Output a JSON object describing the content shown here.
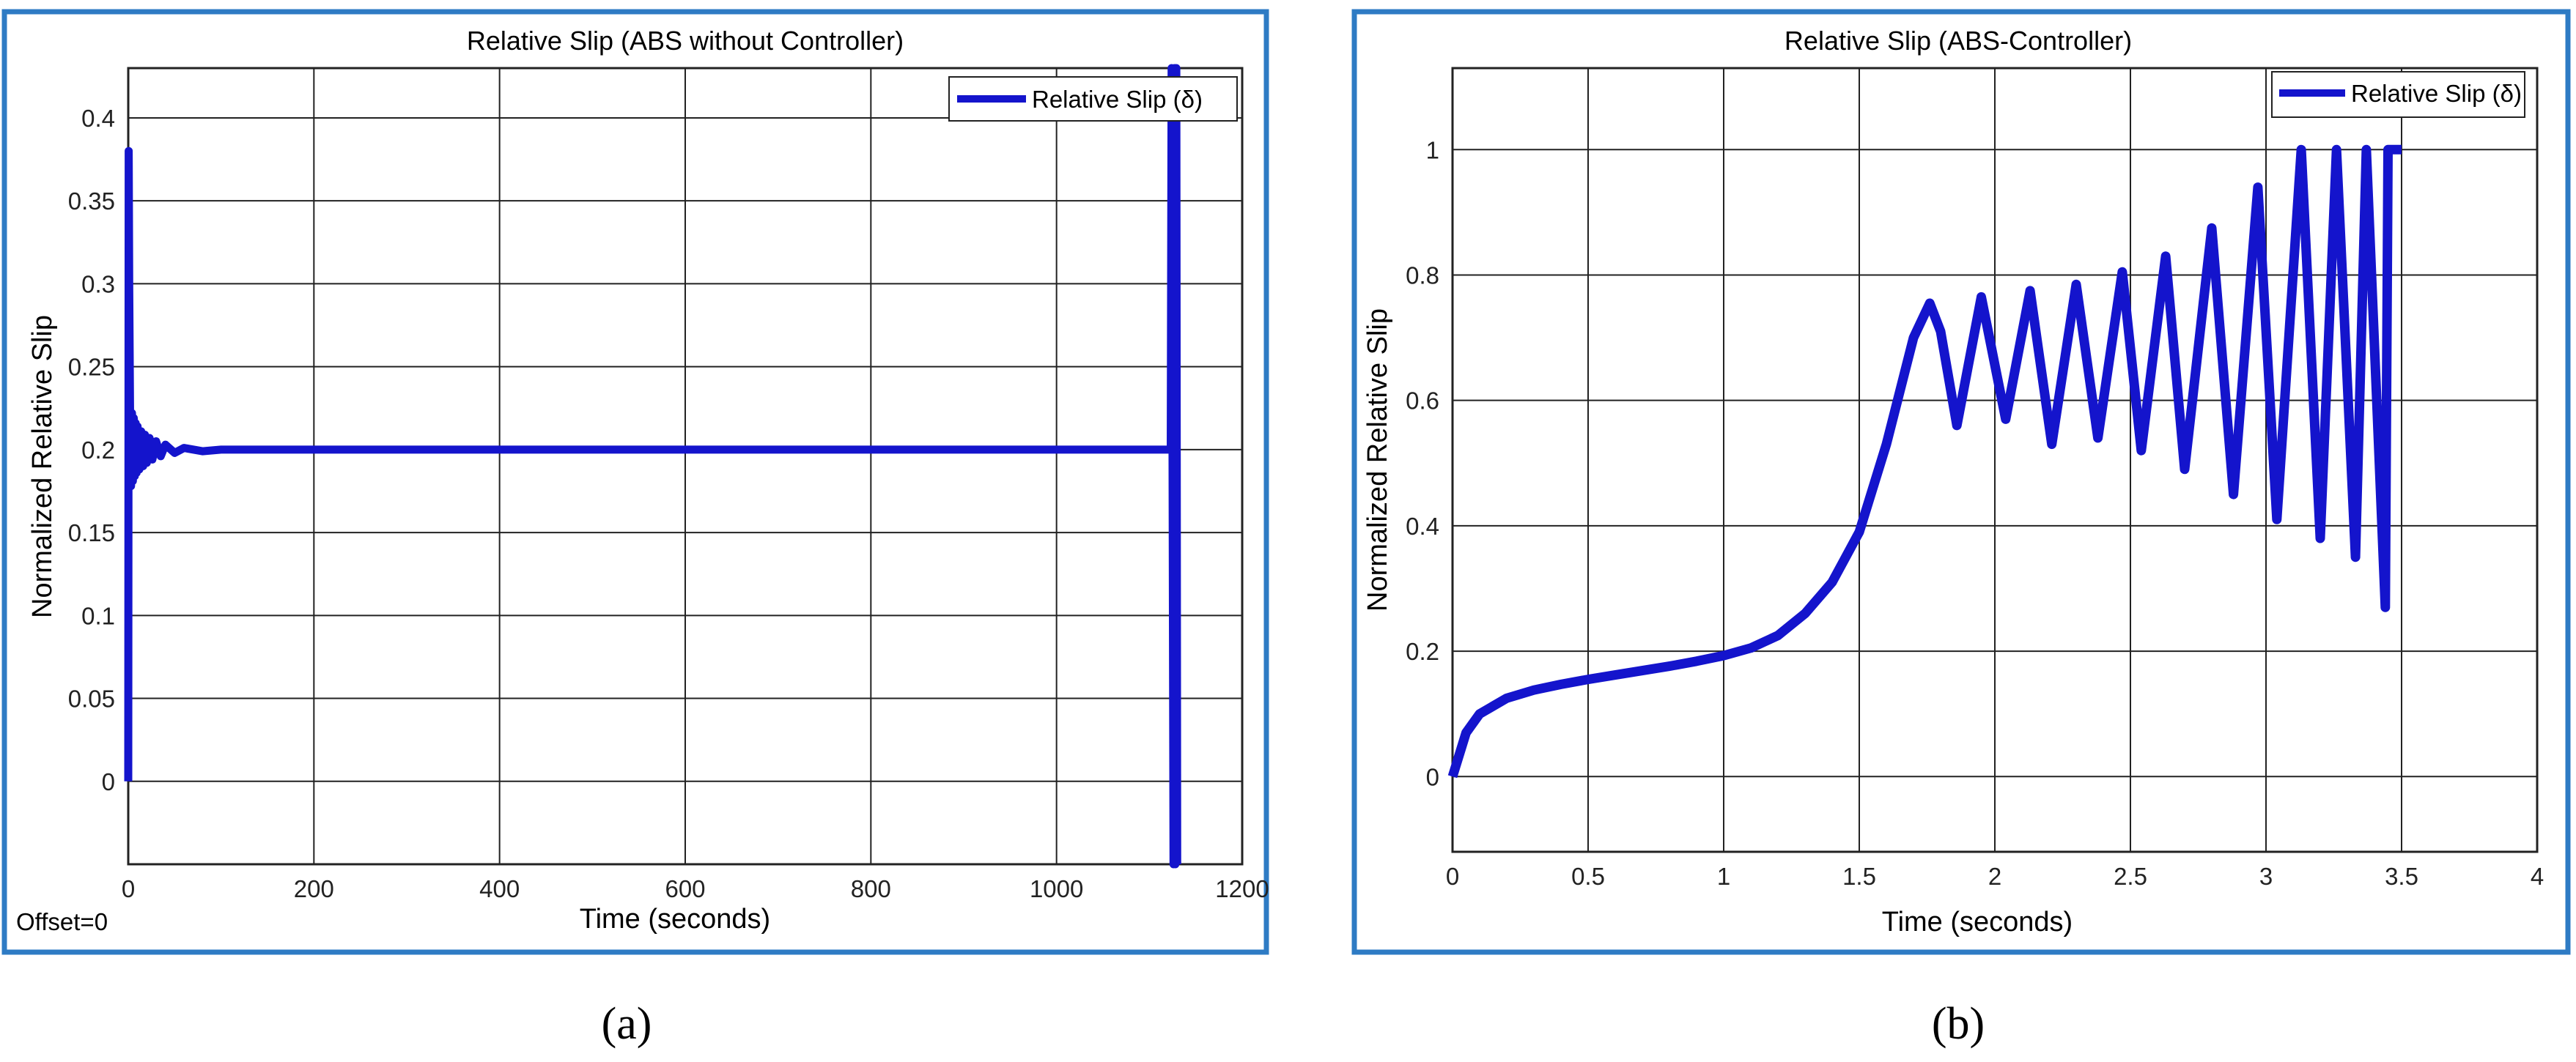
{
  "colors": {
    "frame": "#2e7bc4",
    "line": "#1414cc",
    "grid": "#222222",
    "axis_text": "#222222",
    "title_text": "#222222"
  },
  "panels": [
    {
      "offset_text": "Offset=0",
      "caption": "(a)"
    },
    {
      "caption": "(b)"
    }
  ],
  "chart_data": [
    {
      "type": "line",
      "title": "Relative Slip (ABS without Controller)",
      "xlabel": "Time (seconds)",
      "ylabel": "Normalized Relative Slip",
      "xlim": [
        0,
        1200
      ],
      "ylim": [
        -0.05,
        0.43
      ],
      "xticks": [
        0,
        200,
        400,
        600,
        800,
        1000,
        1200
      ],
      "xtick_labels": [
        "0",
        "200",
        "400",
        "600",
        "800",
        "1000",
        "1200"
      ],
      "yticks": [
        0,
        0.05,
        0.1,
        0.15,
        0.2,
        0.25,
        0.3,
        0.35,
        0.4
      ],
      "ytick_labels": [
        "0",
        "0.05",
        "0.1",
        "0.15",
        "0.2",
        "0.25",
        "0.3",
        "0.35",
        "0.4"
      ],
      "grid": true,
      "legend_position": "top-right",
      "series": [
        {
          "name": "Relative Slip (δ)",
          "x": [
            0,
            0.5,
            1,
            2,
            3,
            4,
            5,
            6,
            7,
            8,
            9,
            10,
            12,
            14,
            16,
            18,
            20,
            23,
            26,
            30,
            35,
            40,
            50,
            60,
            80,
            100,
            200,
            400,
            600,
            800,
            1000,
            1120,
            1123,
            1124,
            1126,
            1127,
            1128,
            1129,
            1130
          ],
          "y": [
            0,
            0.38,
            0.3,
            0.22,
            0.178,
            0.222,
            0.181,
            0.219,
            0.184,
            0.216,
            0.186,
            0.214,
            0.188,
            0.211,
            0.19,
            0.209,
            0.192,
            0.207,
            0.194,
            0.205,
            0.196,
            0.203,
            0.198,
            0.201,
            0.199,
            0.2,
            0.2,
            0.2,
            0.2,
            0.2,
            0.2,
            0.2,
            0.2,
            0.43,
            -0.05,
            0.43,
            -0.05,
            0.43,
            -0.05
          ]
        }
      ]
    },
    {
      "type": "line",
      "title": "Relative Slip (ABS-Controller)",
      "xlabel": "Time (seconds)",
      "ylabel": "Normalized Relative Slip",
      "xlim": [
        0,
        4
      ],
      "ylim": [
        -0.12,
        1.13
      ],
      "xticks": [
        0,
        0.5,
        1,
        1.5,
        2,
        2.5,
        3,
        3.5,
        4
      ],
      "xtick_labels": [
        "0",
        "0.5",
        "1",
        "1.5",
        "2",
        "2.5",
        "3",
        "3.5",
        "4"
      ],
      "yticks": [
        0,
        0.2,
        0.4,
        0.6,
        0.8,
        1
      ],
      "ytick_labels": [
        "0",
        "0.2",
        "0.4",
        "0.6",
        "0.8",
        "1"
      ],
      "grid": true,
      "legend_position": "top-right",
      "series": [
        {
          "name": "Relative Slip (δ)",
          "x": [
            0,
            0.05,
            0.1,
            0.2,
            0.3,
            0.4,
            0.5,
            0.6,
            0.7,
            0.8,
            0.9,
            1.0,
            1.1,
            1.2,
            1.3,
            1.4,
            1.5,
            1.6,
            1.7,
            1.76,
            1.8,
            1.86,
            1.95,
            2.04,
            2.13,
            2.21,
            2.3,
            2.38,
            2.47,
            2.54,
            2.63,
            2.7,
            2.8,
            2.88,
            2.97,
            3.04,
            3.13,
            3.2,
            3.26,
            3.33,
            3.37,
            3.44,
            3.45,
            3.47,
            3.5
          ],
          "y": [
            0,
            0.07,
            0.1,
            0.125,
            0.138,
            0.147,
            0.155,
            0.162,
            0.169,
            0.176,
            0.184,
            0.193,
            0.205,
            0.225,
            0.26,
            0.31,
            0.39,
            0.53,
            0.7,
            0.755,
            0.71,
            0.56,
            0.765,
            0.57,
            0.775,
            0.53,
            0.785,
            0.54,
            0.805,
            0.52,
            0.83,
            0.49,
            0.875,
            0.45,
            0.94,
            0.41,
            1.0,
            0.38,
            1.0,
            0.35,
            1.0,
            0.27,
            1.0,
            1.0,
            1.0
          ]
        }
      ]
    }
  ]
}
